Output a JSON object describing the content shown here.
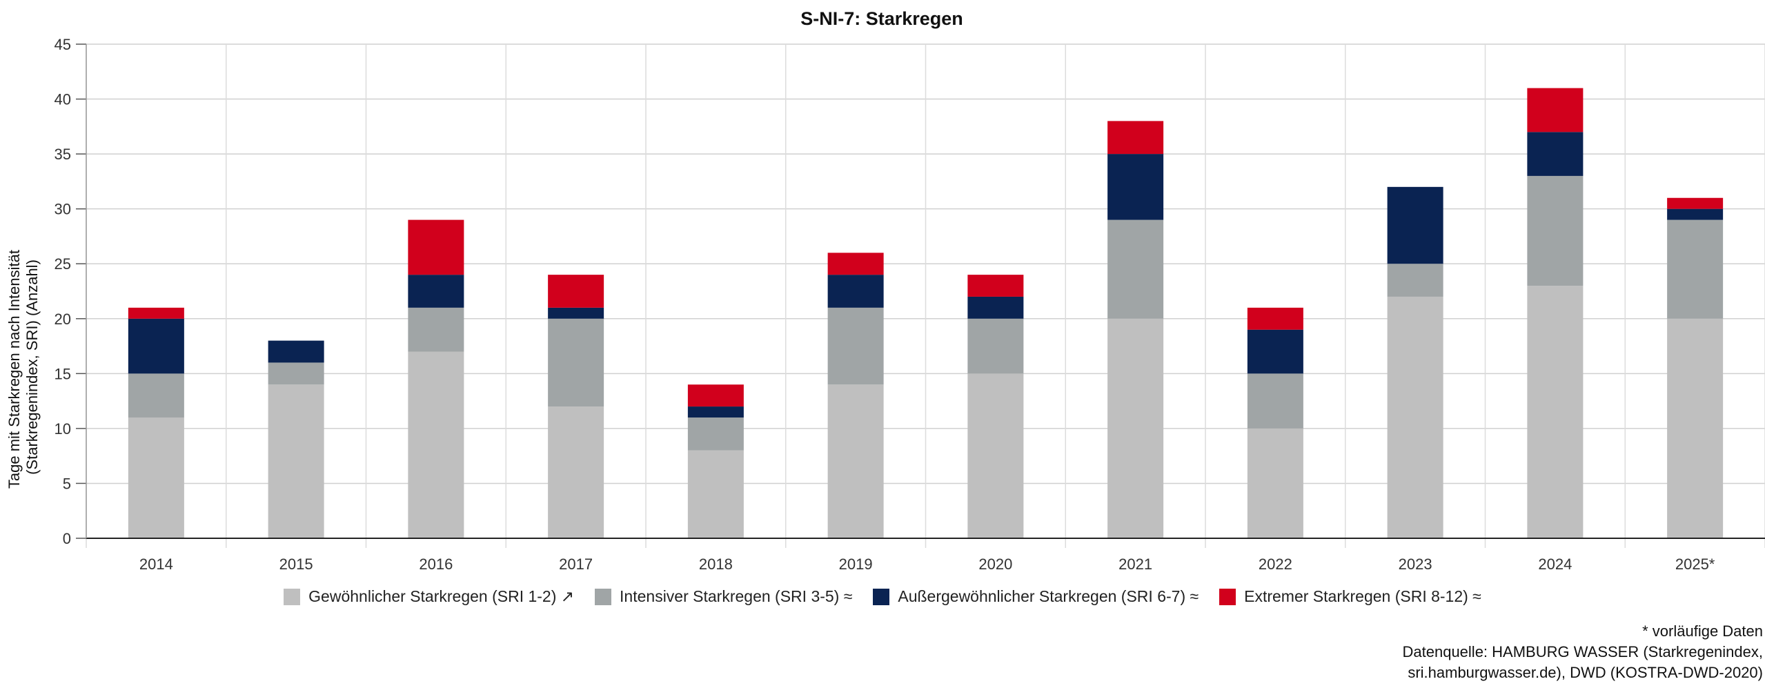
{
  "chart_data": {
    "type": "bar",
    "stacked": true,
    "title": "S-NI-7: Starkregen",
    "ylabel": "Tage mit Starkregen nach Intensität (Starkregenindex, SRI) (Anzahl)",
    "ylabel_lines": [
      "Tage mit Starkregen nach Intensität",
      "(Starkregenindex, SRI) (Anzahl)"
    ],
    "xlabel": "",
    "ylim": [
      0,
      45
    ],
    "yticks": [
      0,
      5,
      10,
      15,
      20,
      25,
      30,
      35,
      40,
      45
    ],
    "grid": true,
    "legend_position": "bottom",
    "categories": [
      "2014",
      "2015",
      "2016",
      "2017",
      "2018",
      "2019",
      "2020",
      "2021",
      "2022",
      "2023",
      "2024",
      "2025*"
    ],
    "series": [
      {
        "name": "Gewöhnlicher Starkregen (SRI 1-2) ↗",
        "color": "#bfbfbf",
        "values": [
          11,
          14,
          17,
          12,
          8,
          14,
          15,
          20,
          10,
          22,
          23,
          20
        ]
      },
      {
        "name": "Intensiver Starkregen (SRI 3-5) ≈",
        "color": "#a0a5a6",
        "values": [
          4,
          2,
          4,
          8,
          3,
          7,
          5,
          9,
          5,
          3,
          10,
          9
        ]
      },
      {
        "name": "Außergewöhnlicher Starkregen (SRI 6-7) ≈",
        "color": "#0a2352",
        "values": [
          5,
          2,
          3,
          1,
          1,
          3,
          2,
          6,
          4,
          7,
          4,
          1
        ]
      },
      {
        "name": "Extremer Starkregen (SRI 8-12) ≈",
        "color": "#d1001c",
        "values": [
          1,
          0,
          5,
          3,
          2,
          2,
          2,
          3,
          2,
          0,
          4,
          1
        ]
      }
    ]
  },
  "notes": {
    "provisional": "* vorläufige Daten",
    "source_lines": [
      "Datenquelle: HAMBURG WASSER (Starkregenindex,",
      "sri.hamburgwasser.de), DWD (KOSTRA-DWD-2020)"
    ]
  }
}
